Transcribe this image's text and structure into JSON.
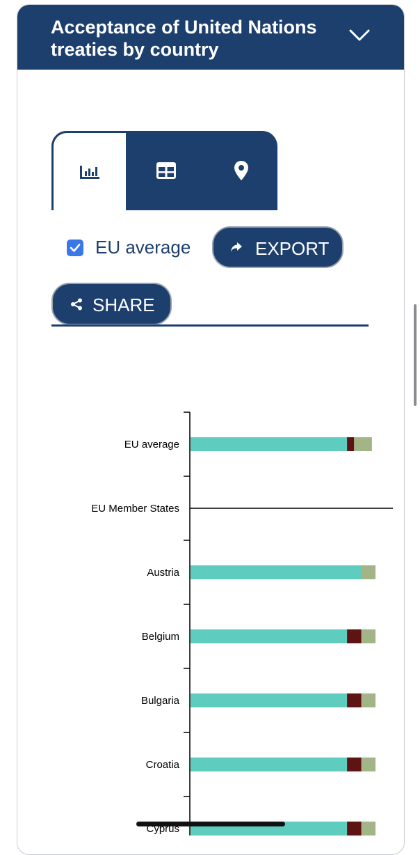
{
  "header": {
    "title": "Acceptance of United Nations treaties by country",
    "icon": "chevron-down-icon"
  },
  "tabs": [
    {
      "icon": "bar-chart-icon",
      "active": true
    },
    {
      "icon": "table-icon",
      "active": false
    },
    {
      "icon": "map-pin-icon",
      "active": false
    }
  ],
  "controls": {
    "eu_average_checkbox": {
      "label": "EU average",
      "checked": true
    },
    "export_label": "EXPORT",
    "share_label": "SHARE"
  },
  "colors": {
    "brand": "#1d3f6e",
    "checkbox": "#3b78e7",
    "series_teal": "#5ecdbf",
    "series_dark_red": "#5e1414",
    "series_olive": "#a3b487"
  },
  "chart_data": {
    "type": "bar",
    "orientation": "horizontal",
    "stacked": true,
    "categories": [
      "EU average",
      "EU Member States",
      "Austria",
      "Belgium",
      "Bulgaria",
      "Croatia",
      "Cyprus"
    ],
    "category_kinds": [
      "bar",
      "separator",
      "bar",
      "bar",
      "bar",
      "bar",
      "bar"
    ],
    "series": [
      {
        "color": "#5ecdbf",
        "values": [
          22,
          null,
          24,
          22,
          22,
          22,
          22
        ]
      },
      {
        "color": "#5e1414",
        "values": [
          1,
          null,
          0,
          2,
          2,
          2,
          2
        ]
      },
      {
        "color": "#a3b487",
        "values": [
          2.5,
          null,
          2,
          2,
          2,
          2,
          2
        ]
      }
    ],
    "xlim": [
      0,
      26
    ]
  }
}
